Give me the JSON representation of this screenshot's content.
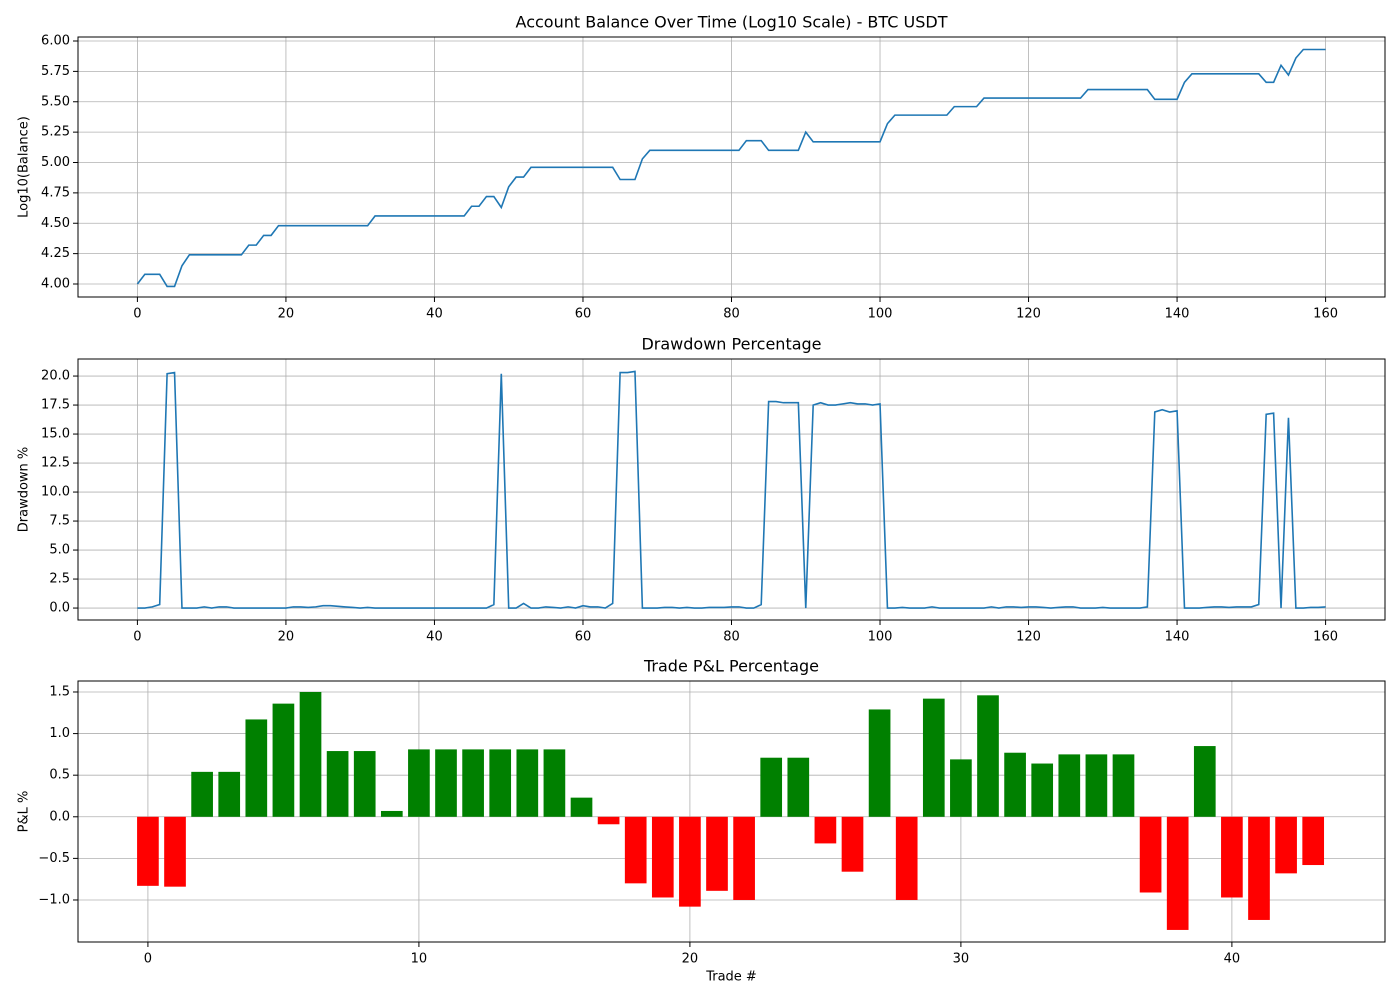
{
  "chart_data": [
    {
      "type": "line",
      "title": "Account Balance Over Time (Log10 Scale) - BTC USDT",
      "ylabel": "Log10(Balance)",
      "color": "#1f77b4",
      "grid": true,
      "x": [
        0,
        1,
        2,
        3,
        4,
        5,
        6,
        7,
        8,
        9,
        10,
        11,
        12,
        13,
        14,
        15,
        16,
        17,
        18,
        19,
        20,
        21,
        22,
        23,
        24,
        25,
        26,
        27,
        28,
        29,
        30,
        31,
        32,
        33,
        34,
        35,
        36,
        37,
        38,
        39,
        40,
        41,
        42,
        43,
        44,
        45,
        46,
        47,
        48,
        49,
        50,
        51,
        52,
        53,
        54,
        55,
        56,
        57,
        58,
        59,
        60,
        61,
        62,
        63,
        64,
        65,
        66,
        67,
        68,
        69,
        70,
        71,
        72,
        73,
        74,
        75,
        76,
        77,
        78,
        79,
        80,
        81,
        82,
        83,
        84,
        85,
        86,
        87,
        88,
        89,
        90,
        91,
        92,
        93,
        94,
        95,
        96,
        97,
        98,
        99,
        100,
        101,
        102,
        103,
        104,
        105,
        106,
        107,
        108,
        109,
        110,
        111,
        112,
        113,
        114,
        115,
        116,
        117,
        118,
        119,
        120,
        121,
        122,
        123,
        124,
        125,
        126,
        127,
        128,
        129,
        130,
        131,
        132,
        133,
        134,
        135,
        136,
        137,
        138,
        139,
        140,
        141,
        142,
        143,
        144,
        145,
        146,
        147,
        148,
        149,
        150,
        151,
        152,
        153,
        154,
        155,
        156,
        157,
        158,
        159,
        160
      ],
      "values": [
        4.0,
        4.08,
        4.08,
        4.08,
        3.98,
        3.98,
        4.15,
        4.24,
        4.24,
        4.24,
        4.24,
        4.24,
        4.24,
        4.24,
        4.24,
        4.32,
        4.32,
        4.4,
        4.4,
        4.48,
        4.48,
        4.48,
        4.48,
        4.48,
        4.48,
        4.48,
        4.48,
        4.48,
        4.48,
        4.48,
        4.48,
        4.48,
        4.56,
        4.56,
        4.56,
        4.56,
        4.56,
        4.56,
        4.56,
        4.56,
        4.56,
        4.56,
        4.56,
        4.56,
        4.56,
        4.64,
        4.64,
        4.72,
        4.72,
        4.63,
        4.8,
        4.88,
        4.88,
        4.96,
        4.96,
        4.96,
        4.96,
        4.96,
        4.96,
        4.96,
        4.96,
        4.96,
        4.96,
        4.96,
        4.96,
        4.86,
        4.86,
        4.86,
        5.03,
        5.1,
        5.1,
        5.1,
        5.1,
        5.1,
        5.1,
        5.1,
        5.1,
        5.1,
        5.1,
        5.1,
        5.1,
        5.1,
        5.18,
        5.18,
        5.18,
        5.1,
        5.1,
        5.1,
        5.1,
        5.1,
        5.25,
        5.17,
        5.17,
        5.17,
        5.17,
        5.17,
        5.17,
        5.17,
        5.17,
        5.17,
        5.17,
        5.32,
        5.39,
        5.39,
        5.39,
        5.39,
        5.39,
        5.39,
        5.39,
        5.39,
        5.46,
        5.46,
        5.46,
        5.46,
        5.53,
        5.53,
        5.53,
        5.53,
        5.53,
        5.53,
        5.53,
        5.53,
        5.53,
        5.53,
        5.53,
        5.53,
        5.53,
        5.53,
        5.6,
        5.6,
        5.6,
        5.6,
        5.6,
        5.6,
        5.6,
        5.6,
        5.6,
        5.52,
        5.52,
        5.52,
        5.52,
        5.66,
        5.73,
        5.73,
        5.73,
        5.73,
        5.73,
        5.73,
        5.73,
        5.73,
        5.73,
        5.73,
        5.66,
        5.66,
        5.8,
        5.72,
        5.86,
        5.93,
        5.93,
        5.93,
        5.93
      ],
      "xlim": [
        -8,
        168
      ],
      "xticks": [
        0,
        20,
        40,
        60,
        80,
        100,
        120,
        140,
        160
      ],
      "ylim": [
        3.893,
        6.033
      ],
      "yticks": [
        {
          "value": 4,
          "label": "4.00"
        },
        {
          "value": 4.25,
          "label": "4.25"
        },
        {
          "value": 4.5,
          "label": "4.50"
        },
        {
          "value": 4.75,
          "label": "4.75"
        },
        {
          "value": 5,
          "label": "5.00"
        },
        {
          "value": 5.25,
          "label": "5.25"
        },
        {
          "value": 5.5,
          "label": "5.50"
        },
        {
          "value": 5.75,
          "label": "5.75"
        },
        {
          "value": 6,
          "label": "6.00"
        }
      ]
    },
    {
      "type": "line",
      "title": "Drawdown Percentage",
      "ylabel": "Drawdown %",
      "color": "#1f77b4",
      "grid": true,
      "x": [
        0,
        1,
        2,
        3,
        4,
        5,
        6,
        7,
        8,
        9,
        10,
        11,
        12,
        13,
        14,
        15,
        16,
        17,
        18,
        19,
        20,
        21,
        22,
        23,
        24,
        25,
        26,
        27,
        28,
        29,
        30,
        31,
        32,
        33,
        34,
        35,
        36,
        37,
        38,
        39,
        40,
        41,
        42,
        43,
        44,
        45,
        46,
        47,
        48,
        49,
        50,
        51,
        52,
        53,
        54,
        55,
        56,
        57,
        58,
        59,
        60,
        61,
        62,
        63,
        64,
        65,
        66,
        67,
        68,
        69,
        70,
        71,
        72,
        73,
        74,
        75,
        76,
        77,
        78,
        79,
        80,
        81,
        82,
        83,
        84,
        85,
        86,
        87,
        88,
        89,
        90,
        91,
        92,
        93,
        94,
        95,
        96,
        97,
        98,
        99,
        100,
        101,
        102,
        103,
        104,
        105,
        106,
        107,
        108,
        109,
        110,
        111,
        112,
        113,
        114,
        115,
        116,
        117,
        118,
        119,
        120,
        121,
        122,
        123,
        124,
        125,
        126,
        127,
        128,
        129,
        130,
        131,
        132,
        133,
        134,
        135,
        136,
        137,
        138,
        139,
        140,
        141,
        142,
        143,
        144,
        145,
        146,
        147,
        148,
        149,
        150,
        151,
        152,
        153,
        154,
        155,
        156,
        157,
        158,
        159,
        160
      ],
      "values": [
        0,
        0,
        0.1,
        0.3,
        20.2,
        20.3,
        0,
        0,
        0,
        0.1,
        0,
        0.1,
        0.1,
        0,
        0,
        0,
        0,
        0,
        0,
        0,
        0,
        0.1,
        0.1,
        0.05,
        0.1,
        0.2,
        0.2,
        0.15,
        0.1,
        0.05,
        0,
        0.05,
        0,
        0,
        0,
        0,
        0,
        0,
        0,
        0,
        0,
        0,
        0,
        0,
        0,
        0,
        0,
        0,
        0.3,
        20.2,
        0,
        0,
        0.4,
        0,
        0,
        0.1,
        0.05,
        0,
        0.1,
        0,
        0.2,
        0.1,
        0.1,
        0,
        0.4,
        20.3,
        20.3,
        20.4,
        0,
        0,
        0,
        0.05,
        0.05,
        0,
        0.05,
        0,
        0,
        0.05,
        0.05,
        0.05,
        0.1,
        0.1,
        0,
        0,
        0.3,
        17.8,
        17.8,
        17.7,
        17.7,
        17.7,
        0,
        17.5,
        17.7,
        17.5,
        17.5,
        17.6,
        17.7,
        17.6,
        17.6,
        17.5,
        17.6,
        0,
        0,
        0.05,
        0,
        0,
        0,
        0.1,
        0,
        0,
        0,
        0,
        0,
        0,
        0,
        0.1,
        0,
        0.1,
        0.1,
        0.05,
        0.1,
        0.1,
        0.05,
        0,
        0.05,
        0.1,
        0.1,
        0,
        0,
        0,
        0.05,
        0,
        0,
        0,
        0,
        0,
        0.1,
        16.9,
        17.1,
        16.9,
        17.0,
        0,
        0,
        0,
        0.05,
        0.1,
        0.1,
        0.05,
        0.1,
        0.1,
        0.1,
        0.3,
        16.7,
        16.8,
        0,
        16.4,
        0,
        0,
        0.05,
        0.05,
        0.1
      ],
      "xlim": [
        -8,
        168
      ],
      "xticks": [
        0,
        20,
        40,
        60,
        80,
        100,
        120,
        140,
        160
      ],
      "ylim": [
        -1.03,
        21.47
      ],
      "yticks": [
        {
          "value": 0,
          "label": "0.0"
        },
        {
          "value": 2.5,
          "label": "2.5"
        },
        {
          "value": 5,
          "label": "5.0"
        },
        {
          "value": 7.5,
          "label": "7.5"
        },
        {
          "value": 10,
          "label": "10.0"
        },
        {
          "value": 12.5,
          "label": "12.5"
        },
        {
          "value": 15,
          "label": "15.0"
        },
        {
          "value": 17.5,
          "label": "17.5"
        },
        {
          "value": 20,
          "label": "20.0"
        }
      ]
    },
    {
      "type": "bar",
      "title": "Trade P&L Percentage",
      "ylabel": "P&L %",
      "xlabel": "Trade #",
      "positive_color": "green",
      "negative_color": "red",
      "grid": true,
      "x": [
        0,
        1,
        2,
        3,
        4,
        5,
        6,
        7,
        8,
        9,
        10,
        11,
        12,
        13,
        14,
        15,
        16,
        17,
        18,
        19,
        20,
        21,
        22,
        23,
        24,
        25,
        26,
        27,
        28,
        29,
        30,
        31,
        32,
        33,
        34,
        35,
        36,
        37,
        38,
        39,
        40,
        41,
        42,
        43
      ],
      "values": [
        -0.83,
        -0.84,
        0.54,
        0.54,
        1.17,
        1.36,
        1.5,
        0.79,
        0.79,
        0.07,
        0.81,
        0.81,
        0.81,
        0.81,
        0.81,
        0.81,
        0.23,
        -0.09,
        -0.8,
        -0.97,
        -1.08,
        -0.89,
        -1.0,
        0.71,
        0.71,
        -0.32,
        -0.66,
        1.29,
        -1.0,
        1.42,
        0.69,
        1.46,
        0.77,
        0.64,
        0.75,
        0.75,
        0.75,
        -0.91,
        -1.36,
        0.85,
        -0.97,
        -1.24,
        -0.68,
        -0.58
      ],
      "xlim": [
        -2.58,
        45.65
      ],
      "xticks": [
        0,
        10,
        20,
        30,
        40
      ],
      "ylim": [
        -1.505,
        1.632
      ],
      "yticks": [
        {
          "value": -1,
          "label": "−1.0"
        },
        {
          "value": -0.5,
          "label": "−0.5"
        },
        {
          "value": 0,
          "label": "0.0"
        },
        {
          "value": 0.5,
          "label": "0.5"
        },
        {
          "value": 1,
          "label": "1.0"
        },
        {
          "value": 1.5,
          "label": "1.5"
        }
      ]
    }
  ]
}
